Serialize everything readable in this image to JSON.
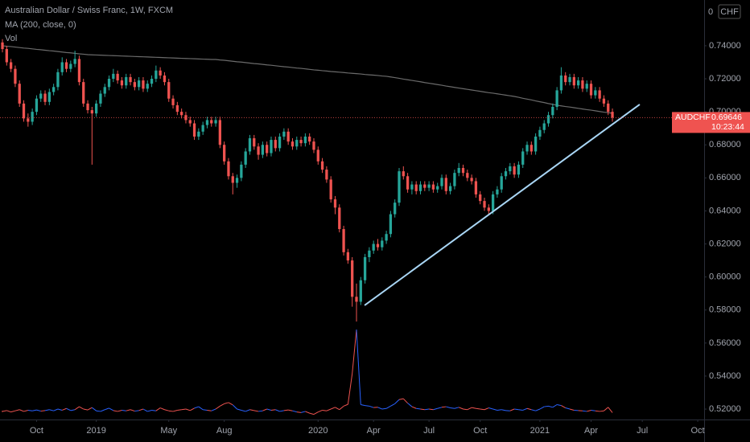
{
  "chart_data": {
    "type": "candlestick",
    "title": "Australian Dollar / Swiss Franc, 1W, FXCM",
    "up_color": "#26a69a",
    "down_color": "#ef5350",
    "ohlc": [
      [
        0.742,
        0.744,
        0.736,
        0.738
      ],
      [
        0.738,
        0.74,
        0.728,
        0.73
      ],
      [
        0.73,
        0.732,
        0.724,
        0.726
      ],
      [
        0.726,
        0.728,
        0.715,
        0.717
      ],
      [
        0.717,
        0.719,
        0.703,
        0.705
      ],
      [
        0.705,
        0.707,
        0.694,
        0.696
      ],
      [
        0.696,
        0.699,
        0.691,
        0.694
      ],
      [
        0.694,
        0.702,
        0.692,
        0.7
      ],
      [
        0.7,
        0.71,
        0.698,
        0.708
      ],
      [
        0.708,
        0.713,
        0.706,
        0.711
      ],
      [
        0.711,
        0.713,
        0.704,
        0.706
      ],
      [
        0.706,
        0.714,
        0.704,
        0.712
      ],
      [
        0.712,
        0.717,
        0.71,
        0.715
      ],
      [
        0.715,
        0.726,
        0.713,
        0.724
      ],
      [
        0.724,
        0.733,
        0.722,
        0.73
      ],
      [
        0.73,
        0.732,
        0.724,
        0.726
      ],
      [
        0.726,
        0.731,
        0.724,
        0.729
      ],
      [
        0.729,
        0.737,
        0.727,
        0.732
      ],
      [
        0.732,
        0.734,
        0.716,
        0.718
      ],
      [
        0.718,
        0.72,
        0.703,
        0.705
      ],
      [
        0.705,
        0.707,
        0.699,
        0.701
      ],
      [
        0.701,
        0.703,
        0.668,
        0.699
      ],
      [
        0.699,
        0.707,
        0.697,
        0.705
      ],
      [
        0.705,
        0.713,
        0.703,
        0.711
      ],
      [
        0.711,
        0.717,
        0.709,
        0.715
      ],
      [
        0.715,
        0.722,
        0.713,
        0.72
      ],
      [
        0.72,
        0.726,
        0.718,
        0.723
      ],
      [
        0.723,
        0.725,
        0.717,
        0.719
      ],
      [
        0.719,
        0.721,
        0.714,
        0.716
      ],
      [
        0.716,
        0.723,
        0.714,
        0.721
      ],
      [
        0.721,
        0.723,
        0.716,
        0.718
      ],
      [
        0.718,
        0.72,
        0.713,
        0.715
      ],
      [
        0.715,
        0.721,
        0.713,
        0.719
      ],
      [
        0.719,
        0.721,
        0.712,
        0.714
      ],
      [
        0.714,
        0.719,
        0.712,
        0.717
      ],
      [
        0.717,
        0.722,
        0.715,
        0.72
      ],
      [
        0.72,
        0.728,
        0.718,
        0.725
      ],
      [
        0.725,
        0.727,
        0.72,
        0.722
      ],
      [
        0.722,
        0.724,
        0.716,
        0.718
      ],
      [
        0.718,
        0.72,
        0.706,
        0.708
      ],
      [
        0.708,
        0.71,
        0.702,
        0.704
      ],
      [
        0.704,
        0.706,
        0.698,
        0.7
      ],
      [
        0.7,
        0.702,
        0.696,
        0.698
      ],
      [
        0.698,
        0.7,
        0.693,
        0.695
      ],
      [
        0.695,
        0.697,
        0.691,
        0.693
      ],
      [
        0.693,
        0.695,
        0.683,
        0.685
      ],
      [
        0.685,
        0.69,
        0.683,
        0.688
      ],
      [
        0.688,
        0.694,
        0.686,
        0.692
      ],
      [
        0.692,
        0.697,
        0.69,
        0.695
      ],
      [
        0.695,
        0.697,
        0.691,
        0.693
      ],
      [
        0.693,
        0.697,
        0.691,
        0.695
      ],
      [
        0.695,
        0.697,
        0.678,
        0.68
      ],
      [
        0.68,
        0.682,
        0.668,
        0.67
      ],
      [
        0.67,
        0.672,
        0.659,
        0.661
      ],
      [
        0.661,
        0.663,
        0.65,
        0.657
      ],
      [
        0.657,
        0.662,
        0.654,
        0.66
      ],
      [
        0.66,
        0.67,
        0.658,
        0.668
      ],
      [
        0.668,
        0.678,
        0.666,
        0.676
      ],
      [
        0.676,
        0.686,
        0.674,
        0.684
      ],
      [
        0.684,
        0.686,
        0.677,
        0.679
      ],
      [
        0.679,
        0.681,
        0.671,
        0.674
      ],
      [
        0.674,
        0.682,
        0.672,
        0.68
      ],
      [
        0.68,
        0.682,
        0.673,
        0.675
      ],
      [
        0.675,
        0.685,
        0.673,
        0.683
      ],
      [
        0.683,
        0.685,
        0.676,
        0.678
      ],
      [
        0.678,
        0.687,
        0.676,
        0.685
      ],
      [
        0.685,
        0.69,
        0.683,
        0.688
      ],
      [
        0.688,
        0.69,
        0.68,
        0.682
      ],
      [
        0.682,
        0.684,
        0.677,
        0.679
      ],
      [
        0.679,
        0.685,
        0.677,
        0.683
      ],
      [
        0.683,
        0.685,
        0.679,
        0.681
      ],
      [
        0.681,
        0.687,
        0.679,
        0.685
      ],
      [
        0.685,
        0.687,
        0.68,
        0.682
      ],
      [
        0.682,
        0.684,
        0.675,
        0.677
      ],
      [
        0.677,
        0.679,
        0.668,
        0.67
      ],
      [
        0.67,
        0.672,
        0.663,
        0.665
      ],
      [
        0.665,
        0.667,
        0.657,
        0.659
      ],
      [
        0.659,
        0.661,
        0.645,
        0.647
      ],
      [
        0.647,
        0.649,
        0.638,
        0.642
      ],
      [
        0.642,
        0.644,
        0.627,
        0.629
      ],
      [
        0.629,
        0.631,
        0.613,
        0.615
      ],
      [
        0.615,
        0.617,
        0.608,
        0.61
      ],
      [
        0.61,
        0.612,
        0.582,
        0.588
      ],
      [
        0.588,
        0.596,
        0.573,
        0.585
      ],
      [
        0.585,
        0.6,
        0.583,
        0.598
      ],
      [
        0.598,
        0.614,
        0.596,
        0.612
      ],
      [
        0.612,
        0.618,
        0.609,
        0.616
      ],
      [
        0.616,
        0.622,
        0.614,
        0.62
      ],
      [
        0.62,
        0.623,
        0.616,
        0.618
      ],
      [
        0.618,
        0.624,
        0.616,
        0.622
      ],
      [
        0.622,
        0.628,
        0.62,
        0.626
      ],
      [
        0.626,
        0.64,
        0.624,
        0.638
      ],
      [
        0.638,
        0.647,
        0.636,
        0.645
      ],
      [
        0.645,
        0.666,
        0.643,
        0.664
      ],
      [
        0.664,
        0.667,
        0.659,
        0.661
      ],
      [
        0.661,
        0.663,
        0.651,
        0.653
      ],
      [
        0.653,
        0.658,
        0.65,
        0.656
      ],
      [
        0.656,
        0.658,
        0.65,
        0.652
      ],
      [
        0.652,
        0.658,
        0.65,
        0.656
      ],
      [
        0.656,
        0.658,
        0.652,
        0.654
      ],
      [
        0.654,
        0.658,
        0.652,
        0.656
      ],
      [
        0.656,
        0.658,
        0.651,
        0.653
      ],
      [
        0.653,
        0.657,
        0.651,
        0.655
      ],
      [
        0.655,
        0.662,
        0.653,
        0.66
      ],
      [
        0.66,
        0.662,
        0.65,
        0.652
      ],
      [
        0.652,
        0.657,
        0.65,
        0.655
      ],
      [
        0.655,
        0.665,
        0.653,
        0.663
      ],
      [
        0.663,
        0.669,
        0.661,
        0.666
      ],
      [
        0.666,
        0.668,
        0.661,
        0.663
      ],
      [
        0.663,
        0.665,
        0.658,
        0.66
      ],
      [
        0.66,
        0.662,
        0.656,
        0.658
      ],
      [
        0.658,
        0.66,
        0.648,
        0.65
      ],
      [
        0.65,
        0.652,
        0.644,
        0.646
      ],
      [
        0.646,
        0.648,
        0.64,
        0.642
      ],
      [
        0.642,
        0.644,
        0.638,
        0.64
      ],
      [
        0.64,
        0.652,
        0.638,
        0.65
      ],
      [
        0.65,
        0.655,
        0.648,
        0.653
      ],
      [
        0.653,
        0.663,
        0.651,
        0.661
      ],
      [
        0.661,
        0.666,
        0.659,
        0.664
      ],
      [
        0.664,
        0.669,
        0.662,
        0.667
      ],
      [
        0.667,
        0.669,
        0.66,
        0.662
      ],
      [
        0.662,
        0.67,
        0.66,
        0.668
      ],
      [
        0.668,
        0.678,
        0.666,
        0.676
      ],
      [
        0.676,
        0.682,
        0.674,
        0.68
      ],
      [
        0.68,
        0.682,
        0.674,
        0.676
      ],
      [
        0.676,
        0.687,
        0.674,
        0.685
      ],
      [
        0.685,
        0.691,
        0.683,
        0.689
      ],
      [
        0.689,
        0.695,
        0.687,
        0.693
      ],
      [
        0.693,
        0.7,
        0.691,
        0.698
      ],
      [
        0.698,
        0.705,
        0.696,
        0.703
      ],
      [
        0.703,
        0.715,
        0.701,
        0.713
      ],
      [
        0.713,
        0.727,
        0.711,
        0.722
      ],
      [
        0.722,
        0.724,
        0.716,
        0.718
      ],
      [
        0.718,
        0.723,
        0.716,
        0.721
      ],
      [
        0.721,
        0.723,
        0.714,
        0.716
      ],
      [
        0.716,
        0.721,
        0.714,
        0.719
      ],
      [
        0.719,
        0.721,
        0.712,
        0.714
      ],
      [
        0.714,
        0.719,
        0.712,
        0.717
      ],
      [
        0.717,
        0.719,
        0.708,
        0.71
      ],
      [
        0.71,
        0.715,
        0.708,
        0.713
      ],
      [
        0.713,
        0.715,
        0.706,
        0.708
      ],
      [
        0.708,
        0.71,
        0.703,
        0.705
      ],
      [
        0.705,
        0.707,
        0.698,
        0.7
      ],
      [
        0.7,
        0.702,
        0.694,
        0.69646
      ]
    ],
    "ma": {
      "name": "MA (200, close, 0)",
      "color": "#6b6b6b",
      "values": [
        0.74,
        0.7397,
        0.7395,
        0.7392,
        0.7389,
        0.7386,
        0.7384,
        0.7381,
        0.7378,
        0.7376,
        0.7373,
        0.737,
        0.7368,
        0.7365,
        0.7362,
        0.7359,
        0.7357,
        0.7354,
        0.7351,
        0.7349,
        0.7346,
        0.7345,
        0.7344,
        0.7343,
        0.7342,
        0.7341,
        0.734,
        0.7339,
        0.7338,
        0.7337,
        0.7336,
        0.7335,
        0.7334,
        0.7333,
        0.7332,
        0.7331,
        0.733,
        0.7329,
        0.7328,
        0.7327,
        0.7326,
        0.7325,
        0.7324,
        0.7323,
        0.7322,
        0.7321,
        0.732,
        0.7319,
        0.7318,
        0.7317,
        0.7317,
        0.7314,
        0.7312,
        0.7309,
        0.7306,
        0.7303,
        0.7301,
        0.7298,
        0.7295,
        0.7292,
        0.729,
        0.7287,
        0.7284,
        0.7282,
        0.7279,
        0.7276,
        0.7273,
        0.7271,
        0.7268,
        0.7265,
        0.7263,
        0.726,
        0.7257,
        0.7254,
        0.7252,
        0.7249,
        0.7247,
        0.7244,
        0.7242,
        0.724,
        0.7238,
        0.7235,
        0.7233,
        0.7231,
        0.7229,
        0.7226,
        0.7224,
        0.7222,
        0.722,
        0.7217,
        0.7215,
        0.7211,
        0.7207,
        0.7203,
        0.7198,
        0.7194,
        0.719,
        0.7186,
        0.7182,
        0.7177,
        0.7173,
        0.7169,
        0.7165,
        0.7161,
        0.7156,
        0.7152,
        0.7148,
        0.7144,
        0.714,
        0.7136,
        0.7132,
        0.7128,
        0.7124,
        0.712,
        0.7116,
        0.7113,
        0.7109,
        0.7105,
        0.7101,
        0.7097,
        0.7093,
        0.7088,
        0.7082,
        0.7077,
        0.7072,
        0.7066,
        0.7061,
        0.7056,
        0.705,
        0.7045,
        0.704,
        0.7036,
        0.7032,
        0.7029,
        0.7025,
        0.7021,
        0.7017,
        0.7013,
        0.701,
        0.7006,
        0.7002,
        0.6998,
        0.6995,
        0.6991
      ]
    },
    "volume": {
      "name": "Vol",
      "up_color": "#2962ff",
      "down_color": "#ef5350",
      "values": [
        22,
        25,
        20,
        24,
        28,
        22,
        26,
        24,
        27,
        23,
        25,
        28,
        24,
        30,
        26,
        32,
        25,
        28,
        38,
        30,
        27,
        35,
        24,
        22,
        28,
        33,
        25,
        22,
        26,
        24,
        28,
        23,
        25,
        30,
        22,
        26,
        24,
        34,
        28,
        24,
        22,
        26,
        28,
        30,
        25,
        33,
        38,
        28,
        26,
        24,
        30,
        40,
        48,
        52,
        44,
        30,
        26,
        22,
        28,
        25,
        22,
        24,
        30,
        26,
        28,
        22,
        25,
        27,
        24,
        20,
        18,
        22,
        16,
        12,
        20,
        26,
        24,
        30,
        36,
        28,
        40,
        46,
        150,
        300,
        45,
        42,
        40,
        35,
        36,
        30,
        32,
        40,
        48,
        62,
        65,
        50,
        38,
        32,
        30,
        28,
        30,
        28,
        32,
        36,
        38,
        34,
        32,
        36,
        30,
        28,
        35,
        32,
        30,
        28,
        34,
        30,
        26,
        28,
        25,
        24,
        30,
        28,
        26,
        32,
        28,
        24,
        30,
        38,
        40,
        36,
        45,
        42,
        34,
        30,
        26,
        25,
        24,
        22,
        26,
        24,
        22,
        24,
        36,
        18
      ]
    },
    "trendline": {
      "x": [
        84.9,
        149.4
      ],
      "y": [
        0.5828,
        0.7045
      ],
      "color": "#a9d6f5"
    },
    "symbol": "AUDCHF",
    "last_price": 0.69646,
    "countdown": "10:23:44",
    "currency": "CHF",
    "top_label": "0",
    "xlim": [
      -0.57,
      164.5
    ],
    "ylim": [
      0.5137,
      0.7677
    ],
    "xticks": [
      {
        "value": 8,
        "label": "Oct"
      },
      {
        "value": 22,
        "label": "2019"
      },
      {
        "value": 39,
        "label": "May"
      },
      {
        "value": 52,
        "label": "Aug"
      },
      {
        "value": 74,
        "label": "2020"
      },
      {
        "value": 87,
        "label": "Apr"
      },
      {
        "value": 100,
        "label": "Jul"
      },
      {
        "value": 112,
        "label": "Oct"
      },
      {
        "value": 126,
        "label": "2021"
      },
      {
        "value": 138,
        "label": "Apr"
      },
      {
        "value": 150,
        "label": "Jul"
      },
      {
        "value": 163,
        "label": "Oct"
      }
    ],
    "yticks": [
      {
        "value": 0.52,
        "label": "0.52000"
      },
      {
        "value": 0.54,
        "label": "0.54000"
      },
      {
        "value": 0.56,
        "label": "0.56000"
      },
      {
        "value": 0.58,
        "label": "0.58000"
      },
      {
        "value": 0.6,
        "label": "0.60000"
      },
      {
        "value": 0.62,
        "label": "0.62000"
      },
      {
        "value": 0.64,
        "label": "0.64000"
      },
      {
        "value": 0.66,
        "label": "0.66000"
      },
      {
        "value": 0.68,
        "label": "0.68000"
      },
      {
        "value": 0.7,
        "label": "0.70000"
      },
      {
        "value": 0.72,
        "label": "0.72000"
      },
      {
        "value": 0.74,
        "label": "0.74000"
      }
    ],
    "grid": false
  }
}
